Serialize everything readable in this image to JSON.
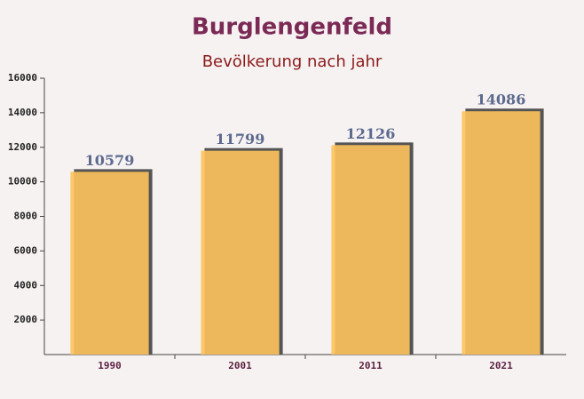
{
  "chart_data": {
    "type": "bar",
    "title": "Burglengenfeld",
    "subtitle": "Bevölkerung nach jahr",
    "categories": [
      "1990",
      "2001",
      "2011",
      "2021"
    ],
    "values": [
      10579,
      11799,
      12126,
      14086
    ],
    "color": "#fdc35c",
    "ylim": [
      0,
      16000
    ],
    "yticks": [
      2000,
      4000,
      6000,
      8000,
      10000,
      12000,
      14000,
      16000
    ]
  }
}
